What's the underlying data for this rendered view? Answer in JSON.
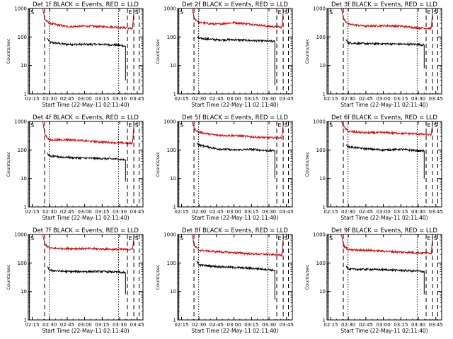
{
  "chart_data": {
    "type": "line",
    "layout": "3x3 grid of line charts, one per detector",
    "title_template": "Det {n}f BLACK = Events, RED = LLD",
    "xlabel": "Start Time (22-May-11 02:11:40)",
    "ylabel": "Counts/sec",
    "x_ticks": [
      "02:15",
      "02:30",
      "02:45",
      "03:00",
      "03:15",
      "03:30",
      "03:45"
    ],
    "x_start": "02:11:40",
    "x_end": "03:50:00",
    "y_scale": "log",
    "ylim": [
      1,
      1000
    ],
    "y_ticks": [
      "1",
      "10",
      "100",
      "1000"
    ],
    "grid": false,
    "legend": "none (described in title: BLACK = Events, RED = LLD)",
    "markers": [
      {
        "label": "S",
        "time": "02:12:40",
        "style": "solid"
      },
      {
        "label": "",
        "time": "02:25:40",
        "style": "dashed"
      },
      {
        "label": "",
        "time": "02:29:40",
        "style": "dotted"
      },
      {
        "label": "",
        "time": "03:29:00",
        "style": "dotted"
      },
      {
        "label": "E",
        "time": "03:36:40",
        "style": "dashed"
      },
      {
        "label": "S",
        "time": "03:42:10",
        "style": "dashed"
      },
      {
        "label": "",
        "time": "03:46:40",
        "style": "dashed"
      }
    ],
    "colors": {
      "events": "#000000",
      "lld": "#dd0000"
    },
    "panels": [
      {
        "det": "1",
        "title": "Det 1f BLACK = Events, RED = LLD",
        "series": [
          {
            "name": "Events",
            "color": "#000000",
            "x": [
              "02:28:00",
              "02:30:00",
              "02:45:00",
              "03:00:00",
              "03:15:00",
              "03:28:00",
              "03:35:00"
            ],
            "y": [
              90,
              65,
              55,
              55,
              55,
              52,
              48
            ],
            "drop_to": 3
          },
          {
            "name": "LLD",
            "color": "#dd0000",
            "x": [
              "02:24:00",
              "02:26:00",
              "02:30:00",
              "02:45:00",
              "03:00:00",
              "03:15:00",
              "03:28:00",
              "03:41:00",
              "03:42:30"
            ],
            "y": [
              1000,
              400,
              300,
              230,
              240,
              230,
              220,
              200,
              1000
            ]
          }
        ]
      },
      {
        "det": "2",
        "title": "Det 2f BLACK = Events, RED = LLD",
        "series": [
          {
            "name": "Events",
            "color": "#000000",
            "x": [
              "02:28:00",
              "02:30:00",
              "02:45:00",
              "03:00:00",
              "03:15:00",
              "03:28:00",
              "03:35:00"
            ],
            "y": [
              100,
              90,
              80,
              80,
              75,
              72,
              70
            ],
            "drop_to": 2
          },
          {
            "name": "LLD",
            "color": "#dd0000",
            "x": [
              "02:24:00",
              "02:26:00",
              "02:30:00",
              "02:45:00",
              "03:00:00",
              "03:15:00",
              "03:28:00",
              "03:41:00",
              "03:42:30"
            ],
            "y": [
              1000,
              450,
              320,
              280,
              320,
              280,
              240,
              220,
              1000
            ]
          }
        ]
      },
      {
        "det": "3",
        "title": "Det 3f BLACK = Events, RED = LLD",
        "series": [
          {
            "name": "Events",
            "color": "#000000",
            "x": [
              "02:28:00",
              "02:30:00",
              "02:45:00",
              "03:00:00",
              "03:15:00",
              "03:28:00",
              "03:35:00"
            ],
            "y": [
              80,
              62,
              58,
              58,
              56,
              55,
              52
            ],
            "drop_to": 8
          },
          {
            "name": "LLD",
            "color": "#dd0000",
            "x": [
              "02:24:00",
              "02:26:00",
              "02:30:00",
              "02:45:00",
              "03:00:00",
              "03:15:00",
              "03:28:00",
              "03:41:00",
              "03:42:30"
            ],
            "y": [
              1000,
              420,
              280,
              240,
              250,
              240,
              210,
              200,
              1000
            ]
          }
        ]
      },
      {
        "det": "4",
        "title": "Det 4f BLACK = Events, RED = LLD",
        "series": [
          {
            "name": "Events",
            "color": "#000000",
            "x": [
              "02:28:00",
              "02:30:00",
              "02:45:00",
              "03:00:00",
              "03:15:00",
              "03:28:00",
              "03:35:00"
            ],
            "y": [
              80,
              60,
              55,
              52,
              50,
              48,
              45
            ],
            "drop_to": 8
          },
          {
            "name": "LLD",
            "color": "#dd0000",
            "x": [
              "02:24:00",
              "02:26:00",
              "02:30:00",
              "02:45:00",
              "03:00:00",
              "03:15:00",
              "03:28:00",
              "03:41:00",
              "03:42:30"
            ],
            "y": [
              1000,
              350,
              220,
              230,
              210,
              190,
              180,
              170,
              1000
            ]
          }
        ]
      },
      {
        "det": "5",
        "title": "Det 5f BLACK = Events, RED = LLD",
        "series": [
          {
            "name": "Events",
            "color": "#000000",
            "x": [
              "02:28:00",
              "02:30:00",
              "02:45:00",
              "03:00:00",
              "03:15:00",
              "03:28:00",
              "03:35:00"
            ],
            "y": [
              180,
              150,
              110,
              100,
              105,
              95,
              95
            ],
            "drop_to": 10
          },
          {
            "name": "LLD",
            "color": "#dd0000",
            "x": [
              "02:24:00",
              "02:26:00",
              "02:30:00",
              "02:45:00",
              "03:00:00",
              "03:15:00",
              "03:28:00",
              "03:41:00",
              "03:42:30"
            ],
            "y": [
              1000,
              550,
              420,
              330,
              320,
              290,
              270,
              270,
              1000
            ]
          }
        ]
      },
      {
        "det": "6",
        "title": "Det 6f BLACK = Events, RED = LLD",
        "series": [
          {
            "name": "Events",
            "color": "#000000",
            "x": [
              "02:28:00",
              "02:30:00",
              "02:45:00",
              "03:00:00",
              "03:15:00",
              "03:28:00",
              "03:35:00"
            ],
            "y": [
              150,
              130,
              110,
              100,
              105,
              95,
              92
            ],
            "drop_to": 10
          },
          {
            "name": "LLD",
            "color": "#dd0000",
            "x": [
              "02:24:00",
              "02:26:00",
              "02:30:00",
              "02:45:00",
              "03:00:00",
              "03:15:00",
              "03:28:00",
              "03:41:00",
              "03:42:30"
            ],
            "y": [
              1000,
              650,
              450,
              400,
              410,
              380,
              370,
              340,
              1000
            ]
          }
        ]
      },
      {
        "det": "7",
        "title": "Det 7f BLACK = Events, RED = LLD",
        "series": [
          {
            "name": "Events",
            "color": "#000000",
            "x": [
              "02:28:00",
              "02:30:00",
              "02:45:00",
              "03:00:00",
              "03:15:00",
              "03:28:00",
              "03:35:00"
            ],
            "y": [
              75,
              55,
              50,
              50,
              50,
              48,
              45
            ],
            "drop_to": 8
          },
          {
            "name": "LLD",
            "color": "#dd0000",
            "x": [
              "02:24:00",
              "02:26:00",
              "02:30:00",
              "02:45:00",
              "03:00:00",
              "03:15:00",
              "03:28:00",
              "03:41:00",
              "03:42:30"
            ],
            "y": [
              1000,
              450,
              330,
              320,
              320,
              310,
              300,
              300,
              1000
            ]
          }
        ]
      },
      {
        "det": "8",
        "title": "Det 8f BLACK = Events, RED = LLD",
        "series": [
          {
            "name": "Events",
            "color": "#000000",
            "x": [
              "02:28:00",
              "02:30:00",
              "02:45:00",
              "03:00:00",
              "03:15:00",
              "03:28:00",
              "03:35:00"
            ],
            "y": [
              120,
              85,
              75,
              70,
              65,
              60,
              55
            ],
            "drop_to": 5
          },
          {
            "name": "LLD",
            "color": "#dd0000",
            "x": [
              "02:24:00",
              "02:26:00",
              "02:30:00",
              "02:45:00",
              "03:00:00",
              "03:15:00",
              "03:28:00",
              "03:41:00",
              "03:42:30"
            ],
            "y": [
              1000,
              400,
              280,
              250,
              230,
              210,
              200,
              190,
              1000
            ]
          }
        ]
      },
      {
        "det": "9",
        "title": "Det 9f BLACK = Events, RED = LLD",
        "series": [
          {
            "name": "Events",
            "color": "#000000",
            "x": [
              "02:28:00",
              "02:30:00",
              "02:45:00",
              "03:00:00",
              "03:15:00",
              "03:28:00",
              "03:35:00"
            ],
            "y": [
              80,
              60,
              60,
              58,
              55,
              52,
              50
            ],
            "drop_to": 8
          },
          {
            "name": "LLD",
            "color": "#dd0000",
            "x": [
              "02:24:00",
              "02:26:00",
              "02:30:00",
              "02:45:00",
              "03:00:00",
              "03:15:00",
              "03:28:00",
              "03:41:00",
              "03:42:30"
            ],
            "y": [
              1000,
              400,
              290,
              280,
              260,
              240,
              230,
              220,
              1000
            ]
          }
        ]
      }
    ]
  }
}
